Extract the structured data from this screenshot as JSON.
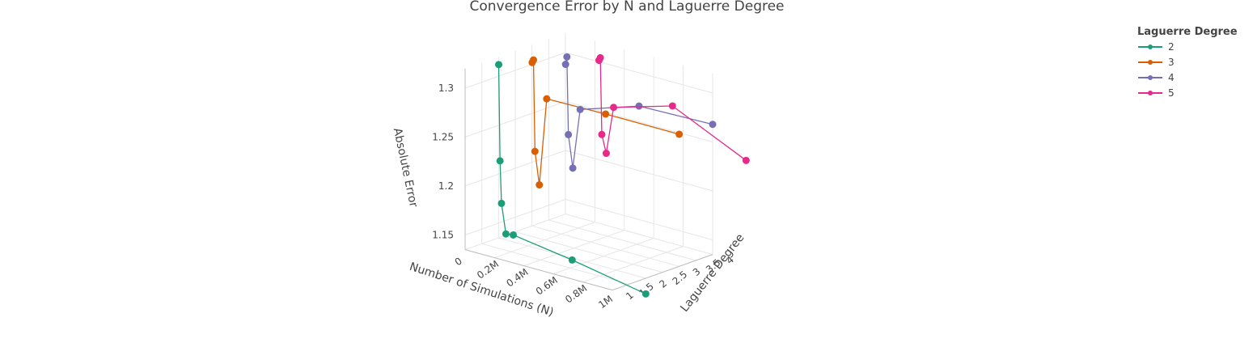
{
  "chart_data": {
    "type": "scatter3d",
    "title": "Convergence Error by N and Laguerre Degree",
    "xlabel": "Number of Simulations (N)",
    "ylabel": "Laguerre Degree",
    "zlabel": "Absolute Error",
    "x_ticks": [
      "0",
      "0.2M",
      "0.4M",
      "0.6M",
      "0.8M",
      "1M"
    ],
    "y_ticks": [
      "1",
      "1.5",
      "2",
      "2.5",
      "3",
      "3.5",
      "4"
    ],
    "z_ticks": [
      "1.15",
      "1.2",
      "1.25",
      "1.3"
    ],
    "legend_title": "Laguerre Degree",
    "legend_position": "top-right",
    "colors": [
      "#1b9e77",
      "#d95f02",
      "#7570b3",
      "#e7298a"
    ],
    "series": [
      {
        "name": "2",
        "color": "#1b9e77",
        "points": [
          [
            1000,
            1.312
          ],
          [
            10000,
            1.214
          ],
          [
            20000,
            1.171
          ],
          [
            50000,
            1.141
          ],
          [
            100000,
            1.142
          ],
          [
            500000,
            1.133
          ],
          [
            1000000,
            1.119
          ]
        ]
      },
      {
        "name": "3",
        "color": "#d95f02",
        "points": [
          [
            1000,
            1.302
          ],
          [
            10000,
            1.305
          ],
          [
            20000,
            1.212
          ],
          [
            50000,
            1.179
          ],
          [
            100000,
            1.269
          ],
          [
            500000,
            1.27
          ],
          [
            1000000,
            1.27
          ]
        ]
      },
      {
        "name": "4",
        "color": "#7570b3",
        "points": [
          [
            1000,
            1.288
          ],
          [
            10000,
            1.296
          ],
          [
            20000,
            1.217
          ],
          [
            50000,
            1.184
          ],
          [
            100000,
            1.246
          ],
          [
            500000,
            1.266
          ],
          [
            1000000,
            1.268
          ]
        ]
      },
      {
        "name": "5",
        "color": "#e7298a",
        "points": [
          [
            1000,
            1.28
          ],
          [
            10000,
            1.283
          ],
          [
            20000,
            1.205
          ],
          [
            50000,
            1.187
          ],
          [
            100000,
            1.236
          ],
          [
            500000,
            1.254
          ],
          [
            1000000,
            1.219
          ]
        ]
      }
    ]
  }
}
